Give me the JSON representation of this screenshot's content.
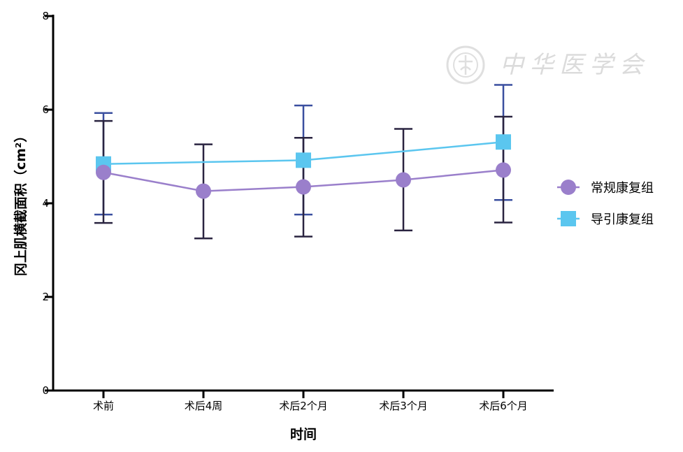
{
  "chart_data": {
    "type": "line",
    "title": "",
    "xlabel": "时间",
    "ylabel": "冈上肌横截面积（cm²）",
    "ylim": [
      0,
      8
    ],
    "yticks": [
      0,
      2,
      4,
      6,
      8
    ],
    "categories": [
      "术前",
      "术后4周",
      "术后2个月",
      "术后3个月",
      "术后6个月"
    ],
    "legend_position": "right",
    "series": [
      {
        "name": "常规康复组",
        "color": "#9a7fcb",
        "bar_color": "#2a2440",
        "marker": "circle",
        "values": [
          4.66,
          4.26,
          4.35,
          4.5,
          4.71
        ],
        "err_low": [
          3.58,
          3.25,
          3.29,
          3.42,
          3.59
        ],
        "err_high": [
          5.76,
          5.26,
          5.4,
          5.59,
          5.85
        ]
      },
      {
        "name": "导引康复组",
        "color": "#5bc6ef",
        "bar_color": "#3a4f9f",
        "marker": "square",
        "values": [
          4.84,
          null,
          4.92,
          null,
          5.31
        ],
        "line_values": [
          4.84,
          4.88,
          4.92,
          5.11,
          5.31
        ],
        "err_low": [
          3.76,
          null,
          3.76,
          null,
          4.07
        ],
        "err_high": [
          5.93,
          null,
          6.09,
          null,
          6.53
        ]
      }
    ],
    "watermark": "中华医学会"
  }
}
